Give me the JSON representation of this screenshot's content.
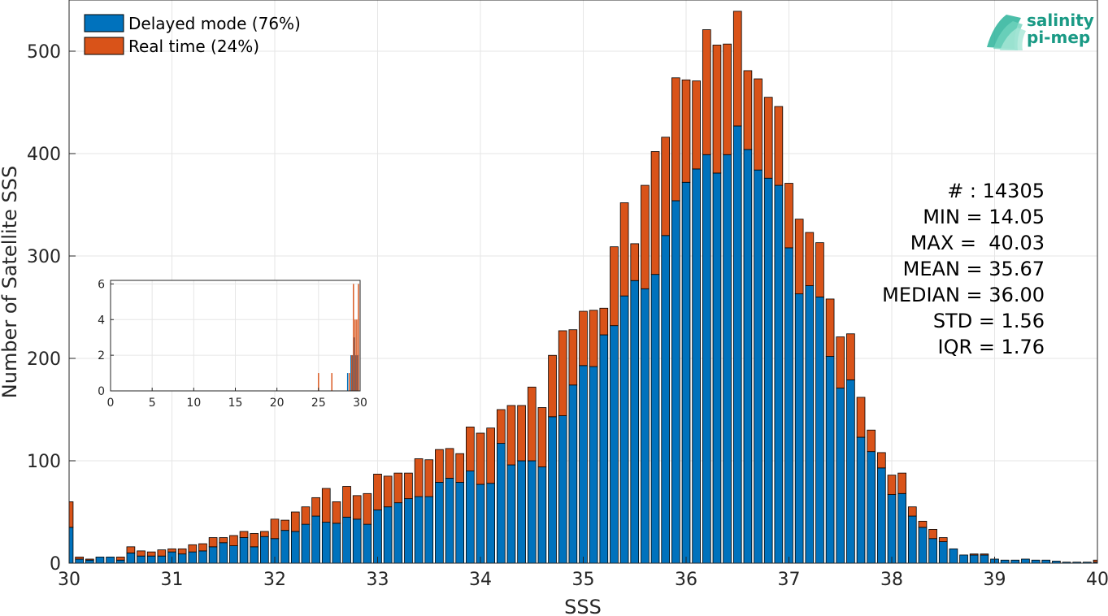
{
  "chart_data": {
    "type": "bar",
    "stacked": true,
    "xlabel": "SSS",
    "ylabel": "Number of Satellite SSS",
    "xlim": [
      30,
      40
    ],
    "ylim": [
      0,
      550
    ],
    "xticks": [
      "30",
      "31",
      "32",
      "33",
      "34",
      "35",
      "36",
      "37",
      "38",
      "39",
      "40"
    ],
    "yticks": [
      "0",
      "100",
      "200",
      "300",
      "400",
      "500"
    ],
    "grid": true,
    "legend_position": "top-left",
    "colors": {
      "delayed": "#0072BD",
      "realtime": "#D95319"
    },
    "bin_width": 0.1,
    "x": [
      30.0,
      30.1,
      30.2,
      30.3,
      30.4,
      30.5,
      30.6,
      30.7,
      30.8,
      30.9,
      31.0,
      31.1,
      31.2,
      31.3,
      31.4,
      31.5,
      31.6,
      31.7,
      31.8,
      31.9,
      32.0,
      32.1,
      32.2,
      32.3,
      32.4,
      32.5,
      32.6,
      32.7,
      32.8,
      32.9,
      33.0,
      33.1,
      33.2,
      33.3,
      33.4,
      33.5,
      33.6,
      33.7,
      33.8,
      33.9,
      34.0,
      34.1,
      34.2,
      34.3,
      34.4,
      34.5,
      34.6,
      34.7,
      34.8,
      34.9,
      35.0,
      35.1,
      35.2,
      35.3,
      35.4,
      35.5,
      35.6,
      35.7,
      35.8,
      35.9,
      36.0,
      36.1,
      36.2,
      36.3,
      36.4,
      36.5,
      36.6,
      36.7,
      36.8,
      36.9,
      37.0,
      37.1,
      37.2,
      37.3,
      37.4,
      37.5,
      37.6,
      37.7,
      37.8,
      37.9,
      38.0,
      38.1,
      38.2,
      38.3,
      38.4,
      38.5,
      38.6,
      38.7,
      38.8,
      38.9,
      39.0,
      39.1,
      39.2,
      39.3,
      39.4,
      39.5,
      39.6,
      39.7,
      39.8,
      39.9,
      40.0
    ],
    "series": [
      {
        "name": "Delayed mode (76%)",
        "values": [
          35,
          4,
          3,
          6,
          6,
          3,
          10,
          7,
          7,
          7,
          11,
          9,
          11,
          12,
          16,
          20,
          17,
          25,
          16,
          26,
          24,
          32,
          31,
          38,
          46,
          40,
          39,
          45,
          43,
          38,
          52,
          55,
          59,
          63,
          65,
          65,
          79,
          83,
          79,
          90,
          77,
          78,
          117,
          96,
          100,
          100,
          94,
          143,
          144,
          174,
          193,
          192,
          223,
          232,
          261,
          276,
          268,
          282,
          320,
          354,
          372,
          385,
          399,
          381,
          399,
          427,
          404,
          384,
          376,
          369,
          308,
          263,
          271,
          260,
          202,
          171,
          179,
          123,
          109,
          93,
          67,
          68,
          46,
          35,
          24,
          21,
          14,
          8,
          8,
          8,
          4,
          3,
          3,
          4,
          3,
          3,
          2,
          1,
          1,
          1,
          1
        ]
      },
      {
        "name": "Real time (24%)",
        "values": [
          25,
          2,
          1,
          0,
          0,
          3,
          6,
          5,
          4,
          6,
          3,
          5,
          7,
          7,
          9,
          5,
          10,
          6,
          13,
          5,
          19,
          10,
          19,
          17,
          18,
          33,
          21,
          30,
          23,
          30,
          35,
          30,
          29,
          25,
          37,
          36,
          32,
          29,
          28,
          43,
          50,
          54,
          33,
          58,
          54,
          72,
          58,
          60,
          83,
          54,
          53,
          55,
          26,
          77,
          91,
          36,
          101,
          120,
          96,
          120,
          100,
          86,
          122,
          125,
          108,
          112,
          77,
          89,
          79,
          77,
          63,
          73,
          52,
          53,
          56,
          50,
          45,
          39,
          21,
          15,
          19,
          20,
          9,
          6,
          9,
          4,
          0,
          0,
          1,
          1,
          0,
          0,
          0,
          0,
          0,
          0,
          0,
          0,
          0,
          0,
          2
        ]
      }
    ],
    "stats": {
      "count": "# : 14305",
      "min": "MIN = 14.05",
      "max": "MAX =  40.03",
      "mean": "MEAN = 35.67",
      "median": "MEDIAN = 36.00",
      "std": "STD = 1.56",
      "iqr": "IQR = 1.76"
    },
    "inset": {
      "type": "bar",
      "xlim": [
        0,
        30
      ],
      "ylim": [
        0,
        6.2
      ],
      "xticks": [
        "0",
        "5",
        "10",
        "15",
        "20",
        "25",
        "30"
      ],
      "yticks": [
        "0",
        "2",
        "4",
        "6"
      ],
      "series": [
        {
          "name": "Delayed mode",
          "x": [
            28.5,
            28.9,
            29.1,
            29.3,
            29.5,
            29.7
          ],
          "values": [
            1,
            2,
            2,
            3,
            2,
            2
          ]
        },
        {
          "name": "Real time",
          "x": [
            25.0,
            26.6,
            28.7,
            29.0,
            29.2,
            29.4,
            29.6,
            29.8
          ],
          "values": [
            1,
            1,
            1,
            2,
            6,
            4,
            4,
            6
          ]
        }
      ]
    }
  },
  "logo": {
    "line1": "salinity",
    "line2": "pi-mep"
  }
}
